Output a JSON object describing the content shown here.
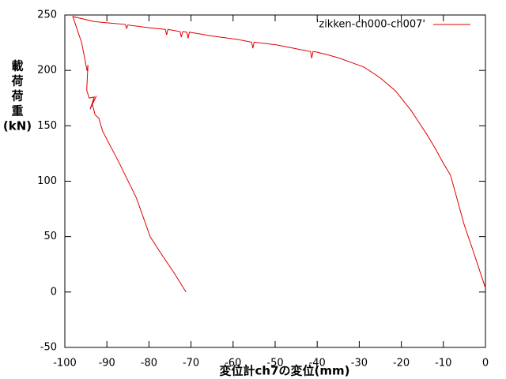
{
  "chart_data": {
    "type": "line",
    "xlabel": "変位計ch7の変位(mm)",
    "ylabel_lines": [
      "載",
      "荷",
      "荷",
      "重",
      "(kN)"
    ],
    "xlim": [
      -100,
      0
    ],
    "xticks": [
      -100,
      -90,
      -80,
      -70,
      -60,
      -50,
      -40,
      -30,
      -20,
      -10,
      0
    ],
    "ylim": [
      -50,
      250
    ],
    "yticks": [
      -50,
      0,
      50,
      100,
      150,
      200,
      250
    ],
    "legend": "top-right",
    "series": [
      {
        "name": "'zikken-ch000-ch007'",
        "color": "#e00000",
        "x": [
          0,
          -1,
          -3,
          -5,
          -8.3,
          -10.2,
          -12,
          -13.9,
          -15.8,
          -17.7,
          -19.6,
          -21.4,
          -25.2,
          -28.9,
          -31.8,
          -34.6,
          -37.4,
          -40.2,
          -41,
          -41.3,
          -41.6,
          -45,
          -49.6,
          -55,
          -55.3,
          -55.6,
          -59,
          -65,
          -70.4,
          -70.7,
          -71,
          -72,
          -72.3,
          -72.6,
          -75.5,
          -75.8,
          -76.1,
          -80,
          -85,
          -85.3,
          -85.6,
          -90,
          -92.9,
          -98.1,
          -96,
          -94.7,
          -94.5,
          -94.8,
          -94.2,
          -93,
          -94,
          -92.5,
          -93.5,
          -92.8,
          -91.9,
          -91,
          -87.2,
          -83,
          -79.7,
          -77,
          -74.1,
          -72.5,
          -71.2
        ],
        "values": [
          3.6,
          15,
          38,
          60,
          105.4,
          117.5,
          130,
          142,
          153,
          164,
          173,
          181.6,
          193.8,
          203,
          207,
          210.9,
          214,
          216.6,
          217,
          211,
          217,
          219.5,
          223,
          225.5,
          220,
          225.5,
          228,
          231,
          234.5,
          229,
          234.5,
          235,
          230,
          235,
          237,
          232,
          237,
          238.5,
          241,
          238,
          241.5,
          243,
          244,
          248.6,
          225,
          199.5,
          205,
          182,
          175,
          176,
          165,
          177,
          170,
          160,
          156.7,
          145,
          117.5,
          85,
          49.8,
          34,
          17.7,
          8,
          0
        ]
      }
    ]
  }
}
